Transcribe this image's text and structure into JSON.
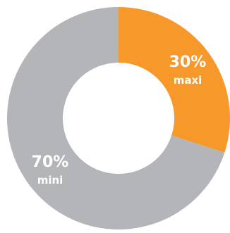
{
  "chart_data": {
    "type": "pie",
    "title": "",
    "donut": true,
    "slices": [
      {
        "label": "maxi",
        "percent_label": "30%",
        "value": 30,
        "color": "#f7982b"
      },
      {
        "label": "mini",
        "percent_label": "70%",
        "value": 70,
        "color": "#b4b5b9"
      }
    ],
    "legend": "none"
  }
}
